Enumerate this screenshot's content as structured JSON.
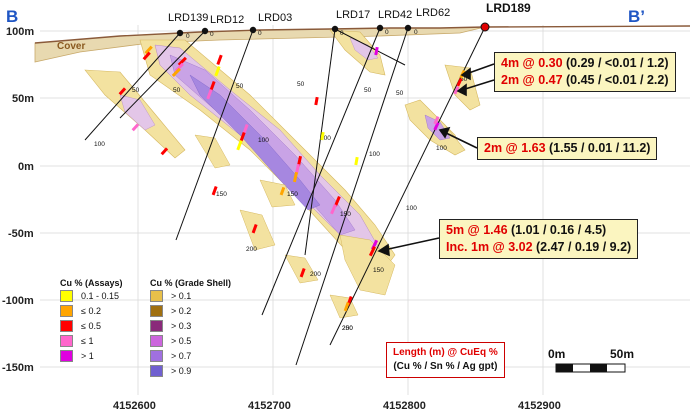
{
  "section": {
    "start_label": "B",
    "end_label": "B’"
  },
  "cover_label": "Cover",
  "y_axis": {
    "ticks": [
      "100m",
      "50m",
      "0m",
      "-50m",
      "-100m",
      "-150m"
    ]
  },
  "x_axis": {
    "ticks": [
      "4152600",
      "4152700",
      "4152800",
      "4152900"
    ]
  },
  "holes": [
    {
      "name": "LRD139",
      "highlight": false,
      "depths": [
        "0",
        "50",
        "100"
      ]
    },
    {
      "name": "LRD12",
      "highlight": false,
      "depths": [
        "0",
        "50"
      ]
    },
    {
      "name": "LRD03",
      "highlight": false,
      "depths": [
        "0",
        "50",
        "100",
        "150",
        "200"
      ]
    },
    {
      "name": "LRD17",
      "highlight": false,
      "depths": [
        "0",
        "50",
        "100",
        "150"
      ]
    },
    {
      "name": "LRD42",
      "highlight": false,
      "depths": [
        "0",
        "50",
        "100",
        "150",
        "200"
      ]
    },
    {
      "name": "LRD62",
      "highlight": false,
      "depths": [
        "0",
        "50",
        "100",
        "150",
        "200",
        "250"
      ]
    },
    {
      "name": "LRD189",
      "highlight": true,
      "depths": [
        "50",
        "100"
      ]
    }
  ],
  "callouts": [
    {
      "lines": [
        {
          "lead": "4m @ 0.30",
          "rest": " (0.29 / <0.01 / 1.2)"
        },
        {
          "lead": "2m @ 0.47",
          "rest": " (0.45 / <0.01 / 2.2)"
        }
      ]
    },
    {
      "lines": [
        {
          "lead": "2m @ 1.63",
          "rest": " (1.55 / 0.01 / 11.2)"
        }
      ]
    },
    {
      "lines": [
        {
          "lead": "5m @ 1.46",
          "rest": " (1.01 / 0.16 / 4.5)"
        },
        {
          "lead": "Inc. 1m @ 3.02",
          "rest": " (2.47 / 0.19 / 9.2)"
        }
      ]
    }
  ],
  "legend_assays": {
    "title": "Cu % (Assays)",
    "items": [
      {
        "label": "0.1 - 0.15",
        "color": "#ffff00"
      },
      {
        "label": "≤  0.2",
        "color": "#ffa500"
      },
      {
        "label": "≤  0.5",
        "color": "#ff0000"
      },
      {
        "label": "≤  1",
        "color": "#ff66cc"
      },
      {
        "label": ">  1",
        "color": "#e000e0"
      }
    ]
  },
  "legend_shell": {
    "title": "Cu % (Grade Shell)",
    "items": [
      {
        "label": "> 0.1",
        "color": "#e8c04a"
      },
      {
        "label": "> 0.2",
        "color": "#a07010"
      },
      {
        "label": "> 0.3",
        "color": "#8a2a7a"
      },
      {
        "label": "> 0.5",
        "color": "#cc66dd"
      },
      {
        "label": "> 0.7",
        "color": "#a070e0"
      },
      {
        "label": "> 0.9",
        "color": "#7060d0"
      }
    ]
  },
  "intercept_legend": {
    "line1": "Length (m) @ CuEq %",
    "line2": "(Cu % / Sn % / Ag gpt)"
  },
  "scale_bar": {
    "start": "0m",
    "end": "50m"
  }
}
